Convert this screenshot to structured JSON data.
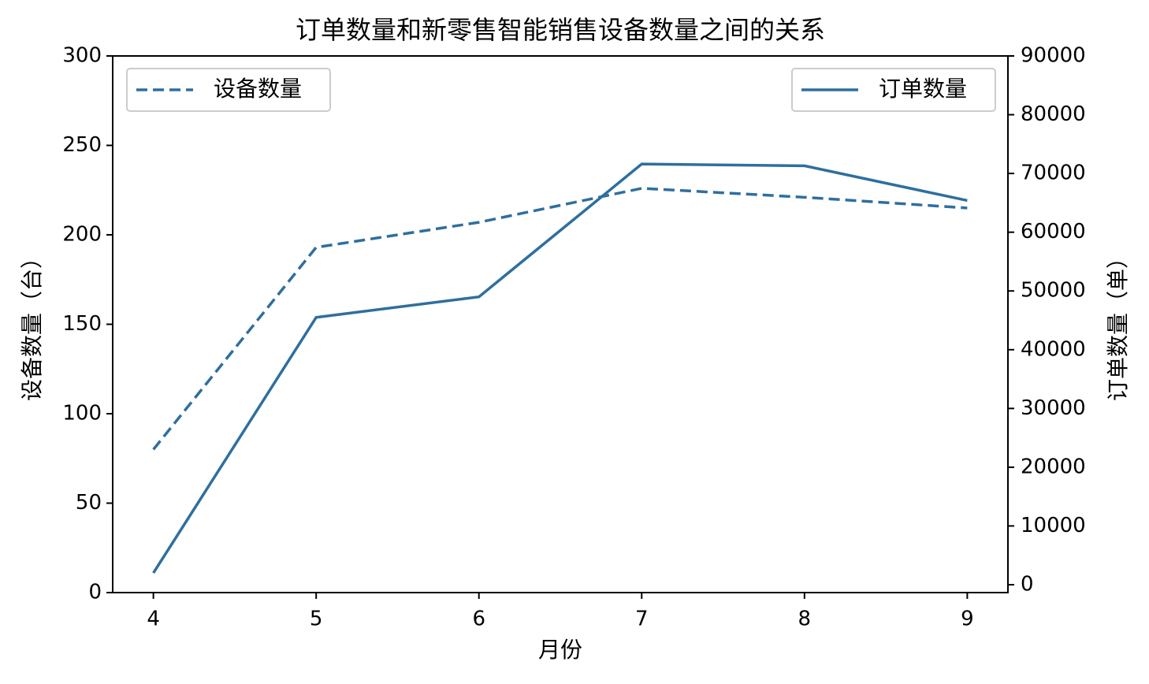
{
  "chart_data": {
    "type": "line",
    "title": "订单数量和新零售智能销售设备数量之间的关系",
    "x_label": "月份",
    "y_label": "设备数量（台）",
    "y2_label": "订单数量（单）",
    "x": [
      4,
      5,
      6,
      7,
      8,
      9
    ],
    "xlim": [
      3.75,
      9.25
    ],
    "xticks": [
      4,
      5,
      6,
      7,
      8,
      9
    ],
    "ylim": [
      0,
      300
    ],
    "yticks": [
      0,
      50,
      100,
      150,
      200,
      250,
      300
    ],
    "y2lim": [
      -1340,
      90000
    ],
    "y2ticks": [
      0,
      10000,
      20000,
      30000,
      40000,
      50000,
      60000,
      70000,
      80000,
      90000
    ],
    "series": [
      {
        "name": "设备数量",
        "color": "#2e6f9e",
        "linestyle": "dashed",
        "axis": "y",
        "legend": "upper left",
        "values": [
          80,
          193,
          207,
          226,
          221,
          215
        ]
      },
      {
        "name": "订单数量",
        "color": "#2e6f9e",
        "linestyle": "solid",
        "axis": "y2",
        "legend": "upper right",
        "values": [
          2000,
          45500,
          49000,
          71600,
          71300,
          65400
        ]
      }
    ]
  }
}
